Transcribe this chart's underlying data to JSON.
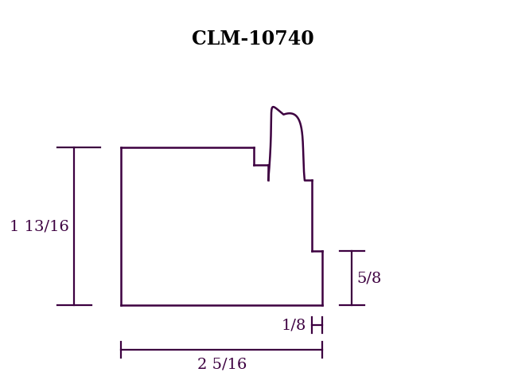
{
  "title": "CLM-10740",
  "title_fontsize": 17,
  "color": "#3d0040",
  "background": "#ffffff",
  "linewidth": 1.8,
  "dim_linewidth": 1.6,
  "label_fontsize": 14,
  "label_1": "1 13/16",
  "label_2": "5/8",
  "label_3": "1/8",
  "label_4": "2 5/16",
  "S": 1.42,
  "ox": 1.85,
  "oy": 1.15
}
